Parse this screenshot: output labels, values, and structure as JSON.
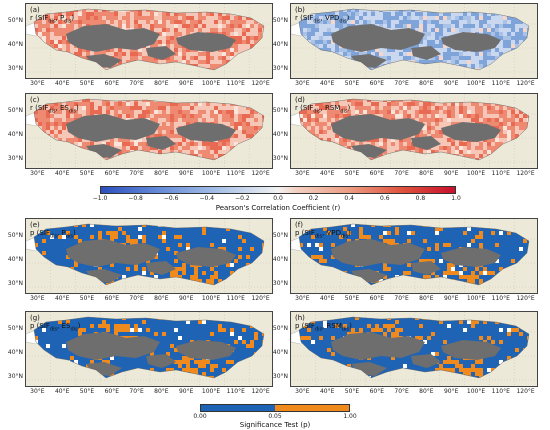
{
  "colors": {
    "land": "#ece9d8",
    "mask": "#6e6e6e",
    "water": "#ffffff",
    "positive": "#e8715a",
    "negative": "#8fb2e0",
    "sig_blue": "#1f63b5",
    "sig_orange": "#f08a1c"
  },
  "lat_labels": [
    "50°N",
    "40°N",
    "30°N"
  ],
  "lon_labels": [
    "30°E",
    "40°E",
    "50°E",
    "60°E",
    "70°E",
    "80°E",
    "90°E",
    "100°E",
    "110°E",
    "120°E"
  ],
  "corr_panels": [
    {
      "label_main": "(a)",
      "label_expr": "r (SIF",
      "sub1": "dis",
      "mid": ", P",
      "sub2": "dis",
      "end": ")",
      "mode": "pos"
    },
    {
      "label_main": "(b)",
      "label_expr": "r (SIF",
      "sub1": "dis",
      "mid": ", VPD",
      "sub2": "dis",
      "end": ")",
      "mode": "neg"
    },
    {
      "label_main": "(c)",
      "label_expr": "r (SIF",
      "sub1": "dis",
      "mid": ", ES",
      "sub2": "dis",
      "end": ")",
      "mode": "pos"
    },
    {
      "label_main": "(d)",
      "label_expr": "r (SIF",
      "sub1": "dis",
      "mid": ", RSM",
      "sub2": "dis",
      "end": ")",
      "mode": "pos"
    }
  ],
  "sig_panels": [
    {
      "label_main": "(e)",
      "label_expr": "p (SIF",
      "sub1": "dis",
      "mid": ", P",
      "sub2": "dis",
      "end": ")"
    },
    {
      "label_main": "(f)",
      "label_expr": "p (SIF",
      "sub1": "dis",
      "mid": ", VPD",
      "sub2": "dis",
      "end": ")"
    },
    {
      "label_main": "(g)",
      "label_expr": "p (SIF",
      "sub1": "dis",
      "mid": ", ES",
      "sub2": "dis",
      "end": ")"
    },
    {
      "label_main": "(h)",
      "label_expr": "p (SIF",
      "sub1": "dis",
      "mid": ", RSM",
      "sub2": "dis",
      "end": ")"
    }
  ],
  "corr_colorbar": {
    "ticks": [
      "−1.0",
      "−0.8",
      "−0.6",
      "−0.4",
      "−0.2",
      "0.0",
      "0.2",
      "0.4",
      "0.6",
      "0.8",
      "1.0"
    ],
    "label": "Pearson's Correlation Coefficient (r)"
  },
  "sig_colorbar": {
    "ticks": [
      "0.00",
      "0.05",
      "1.00"
    ],
    "label": "Significance Test (p)"
  }
}
